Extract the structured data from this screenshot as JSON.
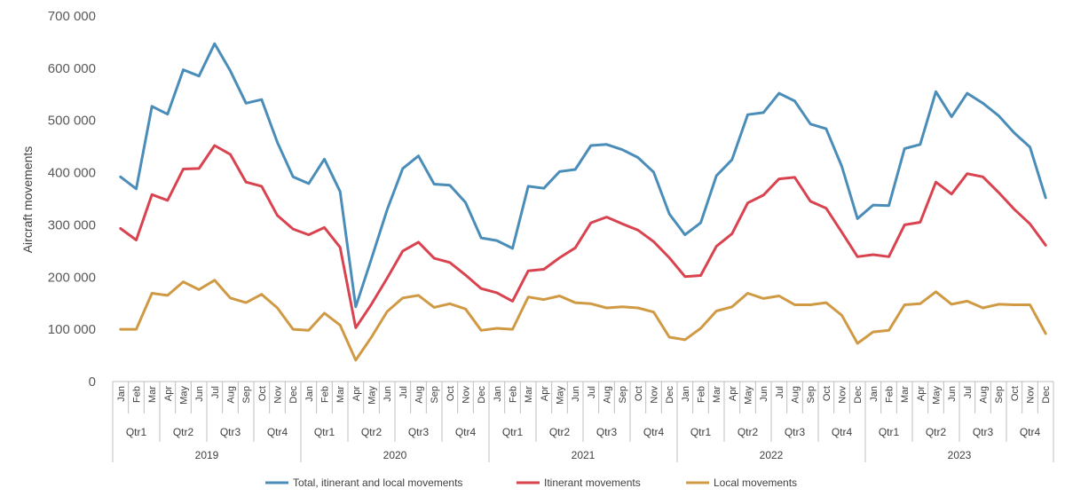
{
  "chart_data": {
    "type": "line",
    "title": "",
    "ylabel": "Aircraft movements",
    "ylim": [
      0,
      700000
    ],
    "y_ticks": [
      "0",
      "100 000",
      "200 000",
      "300 000",
      "400 000",
      "500 000",
      "600 000",
      "700 000"
    ],
    "months": [
      "Jan",
      "Feb",
      "Mar",
      "Apr",
      "May",
      "Jun",
      "Jul",
      "Aug",
      "Sep",
      "Oct",
      "Nov",
      "Dec"
    ],
    "quarters": [
      "Qtr1",
      "Qtr2",
      "Qtr3",
      "Qtr4"
    ],
    "years": [
      "2019",
      "2020",
      "2021",
      "2022",
      "2023"
    ],
    "grid": false,
    "legend_position": "bottom",
    "series": [
      {
        "name": "Total, itinerant and local movements",
        "color": "#4A8DB8",
        "values": [
          392000,
          369000,
          527000,
          512000,
          597000,
          585000,
          647000,
          595000,
          533000,
          540000,
          458000,
          392000,
          379000,
          426000,
          364000,
          143000,
          235000,
          329000,
          408000,
          432000,
          378000,
          376000,
          343000,
          275000,
          270000,
          255000,
          374000,
          370000,
          402000,
          406000,
          452000,
          454000,
          444000,
          429000,
          401000,
          321000,
          281000,
          304000,
          394000,
          425000,
          511000,
          515000,
          552000,
          537000,
          493000,
          484000,
          412000,
          312000,
          338000,
          337000,
          446000,
          454000,
          555000,
          507000,
          552000,
          533000,
          509000,
          476000,
          449000,
          352000
        ]
      },
      {
        "name": "Itinerant movements",
        "color": "#D9434F",
        "values": [
          293000,
          271000,
          358000,
          347000,
          407000,
          408000,
          452000,
          435000,
          382000,
          374000,
          318000,
          292000,
          281000,
          295000,
          257000,
          103000,
          148000,
          198000,
          250000,
          267000,
          236000,
          228000,
          204000,
          178000,
          170000,
          154000,
          212000,
          215000,
          237000,
          256000,
          304000,
          315000,
          302000,
          290000,
          268000,
          237000,
          201000,
          203000,
          259000,
          283000,
          342000,
          357000,
          388000,
          391000,
          345000,
          332000,
          286000,
          239000,
          243000,
          239000,
          300000,
          305000,
          382000,
          359000,
          398000,
          392000,
          362000,
          330000,
          302000,
          261000
        ]
      },
      {
        "name": "Local movements",
        "color": "#D09A45",
        "values": [
          100000,
          100000,
          169000,
          165000,
          191000,
          176000,
          194000,
          160000,
          151000,
          167000,
          141000,
          100000,
          98000,
          131000,
          108000,
          41000,
          85000,
          134000,
          160000,
          165000,
          142000,
          149000,
          139000,
          98000,
          102000,
          100000,
          162000,
          157000,
          164000,
          151000,
          149000,
          141000,
          143000,
          141000,
          133000,
          85000,
          80000,
          102000,
          135000,
          143000,
          169000,
          159000,
          164000,
          147000,
          147000,
          151000,
          127000,
          73000,
          95000,
          98000,
          147000,
          149000,
          172000,
          148000,
          154000,
          141000,
          148000,
          147000,
          147000,
          92000
        ]
      }
    ]
  }
}
